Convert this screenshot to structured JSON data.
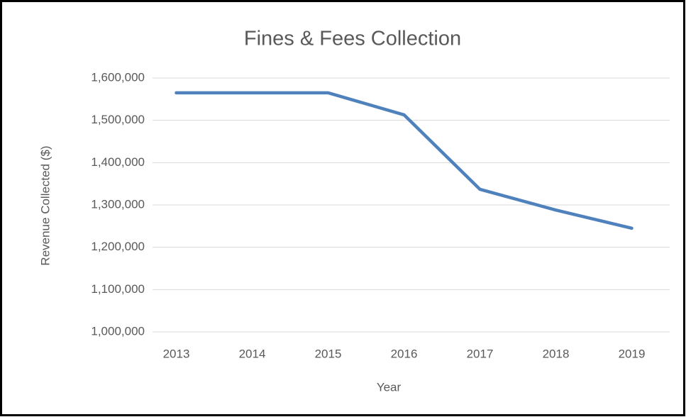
{
  "chart_data": {
    "type": "line",
    "title": "Fines & Fees Collection",
    "x_label": "Year",
    "y_label": "Revenue Collected ($)",
    "categories": [
      "2013",
      "2014",
      "2015",
      "2016",
      "2017",
      "2018",
      "2019"
    ],
    "series": [
      {
        "name": "Revenue Collected",
        "color": "#4f81bd",
        "values": [
          1565000,
          1565000,
          1565000,
          1513000,
          1337000,
          1288000,
          1245000
        ]
      }
    ],
    "ylim": [
      1000000,
      1600000
    ],
    "yticks": [
      {
        "value": 1000000,
        "label": "1,000,000"
      },
      {
        "value": 1100000,
        "label": "1,100,000"
      },
      {
        "value": 1200000,
        "label": "1,200,000"
      },
      {
        "value": 1300000,
        "label": "1,300,000"
      },
      {
        "value": 1400000,
        "label": "1,400,000"
      },
      {
        "value": 1500000,
        "label": "1,500,000"
      },
      {
        "value": 1600000,
        "label": "1,600,000"
      }
    ],
    "grid": true
  }
}
